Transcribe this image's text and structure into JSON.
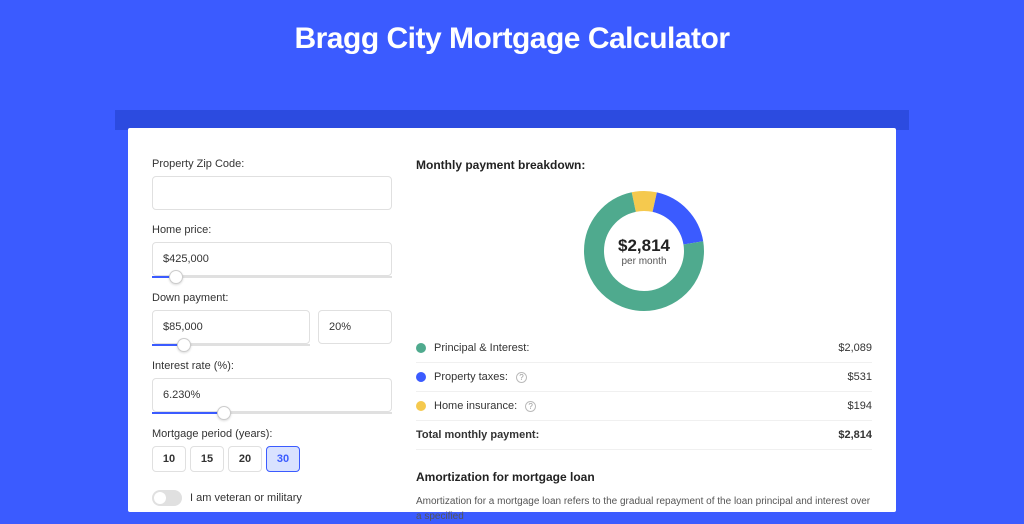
{
  "page_title": "Bragg City Mortgage Calculator",
  "colors": {
    "page_bg": "#3b5bff",
    "header_bar": "#2c4be0",
    "card_bg": "#ffffff",
    "input_border": "#e0e0e0",
    "slider_fill": "#3b5bff",
    "active_btn_bg": "#d9e2ff",
    "active_btn_border": "#3b5bff"
  },
  "form": {
    "zip": {
      "label": "Property Zip Code:",
      "value": ""
    },
    "home_price": {
      "label": "Home price:",
      "value": "$425,000",
      "slider_pct": 10
    },
    "down_payment": {
      "label": "Down payment:",
      "amount": "$85,000",
      "pct": "20%",
      "slider_pct": 20
    },
    "interest_rate": {
      "label": "Interest rate (%):",
      "value": "6.230%",
      "slider_pct": 30
    },
    "period": {
      "label": "Mortgage period (years):",
      "options": [
        "10",
        "15",
        "20",
        "30"
      ],
      "active_index": 3
    },
    "veteran": {
      "label": "I am veteran or military",
      "checked": false
    }
  },
  "breakdown": {
    "title": "Monthly payment breakdown:",
    "center_amount": "$2,814",
    "center_sub": "per month",
    "donut": {
      "type": "donut",
      "size": 130,
      "thickness": 20,
      "slices": [
        {
          "label": "Principal & Interest:",
          "value": "$2,089",
          "pct": 74.2,
          "color": "#4faa8e"
        },
        {
          "label": "Property taxes:",
          "value": "$531",
          "pct": 18.9,
          "color": "#3b5bff",
          "has_info": true
        },
        {
          "label": "Home insurance:",
          "value": "$194",
          "pct": 6.9,
          "color": "#f5c94e",
          "has_info": true
        }
      ]
    },
    "total": {
      "label": "Total monthly payment:",
      "value": "$2,814"
    }
  },
  "amortization": {
    "title": "Amortization for mortgage loan",
    "text": "Amortization for a mortgage loan refers to the gradual repayment of the loan principal and interest over a specified"
  }
}
